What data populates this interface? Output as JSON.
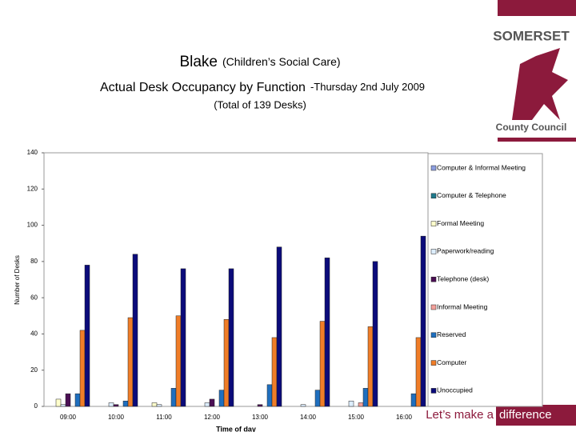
{
  "header": {
    "title_main": "Blake",
    "title_sub": "(Children’s Social Care)",
    "line2_main": "Actual Desk Occupancy by Function",
    "line2_sub": "-Thursday 2nd July 2009",
    "line3": "(Total of 139 Desks)"
  },
  "branding": {
    "logo_top": "SOMERSET",
    "logo_bottom": "County Council",
    "tagline_a": "Let’s make a",
    "tagline_b": "difference"
  },
  "chart_data": {
    "type": "bar",
    "x_label": "Time of day",
    "y_label": "Number of Desks",
    "categories": [
      "09:00",
      "10:00",
      "11:00",
      "12:00",
      "13:00",
      "14:00",
      "15:00",
      "16:00"
    ],
    "ylim": [
      0,
      140
    ],
    "yticks": [
      0,
      20,
      40,
      60,
      80,
      100,
      120,
      140
    ],
    "legend": "right",
    "series": [
      {
        "name": "Computer & Informal Meeting",
        "color": "#8c9ee0",
        "values": [
          0,
          0,
          0,
          0,
          0,
          0,
          0,
          0
        ]
      },
      {
        "name": "Computer & Telephone",
        "color": "#1f7a8c",
        "values": [
          0,
          0,
          0,
          0,
          0,
          0,
          0,
          0
        ]
      },
      {
        "name": "Formal Meeting",
        "color": "#ffffcc",
        "values": [
          4,
          0,
          2,
          0,
          0,
          0,
          0,
          0
        ]
      },
      {
        "name": "Paperwork/reading",
        "color": "#ddeeff",
        "values": [
          1,
          2,
          1,
          2,
          0,
          1,
          3,
          0
        ]
      },
      {
        "name": "Telephone (desk)",
        "color": "#4b0f54",
        "values": [
          7,
          1,
          0,
          4,
          1,
          0,
          0,
          0
        ]
      },
      {
        "name": "Informal Meeting",
        "color": "#f4a09a",
        "values": [
          0,
          0,
          0,
          0,
          0,
          0,
          2,
          0
        ]
      },
      {
        "name": "Reserved",
        "color": "#1f6fbf",
        "values": [
          7,
          3,
          10,
          9,
          12,
          9,
          10,
          7
        ]
      },
      {
        "name": "Computer",
        "color": "#f07d28",
        "values": [
          42,
          49,
          50,
          48,
          38,
          47,
          44,
          38
        ]
      },
      {
        "name": "Unoccupied",
        "color": "#0b0b7a",
        "values": [
          78,
          84,
          76,
          76,
          88,
          82,
          80,
          94
        ]
      }
    ]
  }
}
